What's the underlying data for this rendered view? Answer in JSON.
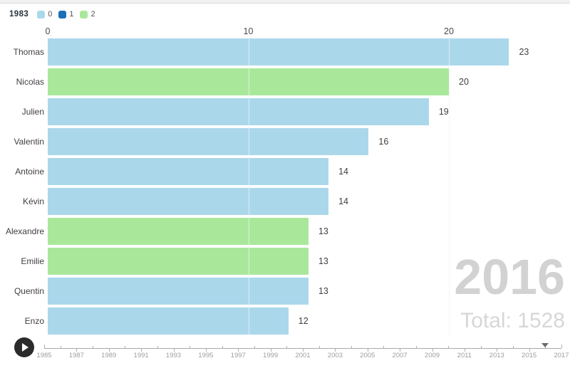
{
  "header": {
    "start_year_label": "1983",
    "legend": {
      "items": [
        {
          "label": "0",
          "color": "#abd7ea"
        },
        {
          "label": "1",
          "color": "#1c70b5"
        },
        {
          "label": "2",
          "color": "#a9e89b"
        }
      ]
    }
  },
  "chart_data": {
    "type": "bar",
    "orientation": "horizontal",
    "title": "",
    "categories": [
      "Thomas",
      "Nicolas",
      "Julien",
      "Valentin",
      "Antoine",
      "Kévin",
      "Alexandre",
      "Emilie",
      "Quentin",
      "Enzo"
    ],
    "values": [
      23,
      20,
      19,
      16,
      14,
      14,
      13,
      13,
      13,
      12
    ],
    "bar_colors": [
      "#abd7ea",
      "#a9e89b",
      "#abd7ea",
      "#abd7ea",
      "#abd7ea",
      "#abd7ea",
      "#a9e89b",
      "#a9e89b",
      "#abd7ea",
      "#abd7ea"
    ],
    "xlabel": "",
    "ylabel": "",
    "x_axis": {
      "position": "top",
      "ticks": [
        0,
        10,
        20
      ],
      "max": 25.7,
      "grid": true
    },
    "legend_position": "top-left"
  },
  "overlay": {
    "current_year": "2016",
    "total": "Total: 1528"
  },
  "timeline": {
    "start_year": 1985,
    "end_year": 2017,
    "labels": [
      "1985",
      "1987",
      "1989",
      "1991",
      "1993",
      "1995",
      "1997",
      "1999",
      "2001",
      "2003",
      "2005",
      "2007",
      "2009",
      "2011",
      "2013",
      "2015",
      "2017"
    ],
    "marker_year": 2016
  },
  "controls": {
    "play_icon": "play-icon"
  },
  "colors": {
    "bar_blue": "#abd7ea",
    "bar_green": "#a9e89b",
    "legend_dark_blue": "#1c70b5",
    "gridline": "#e9e9e9",
    "overlay_gray": "#d2d2d2",
    "play_background": "#2b2b2b"
  }
}
